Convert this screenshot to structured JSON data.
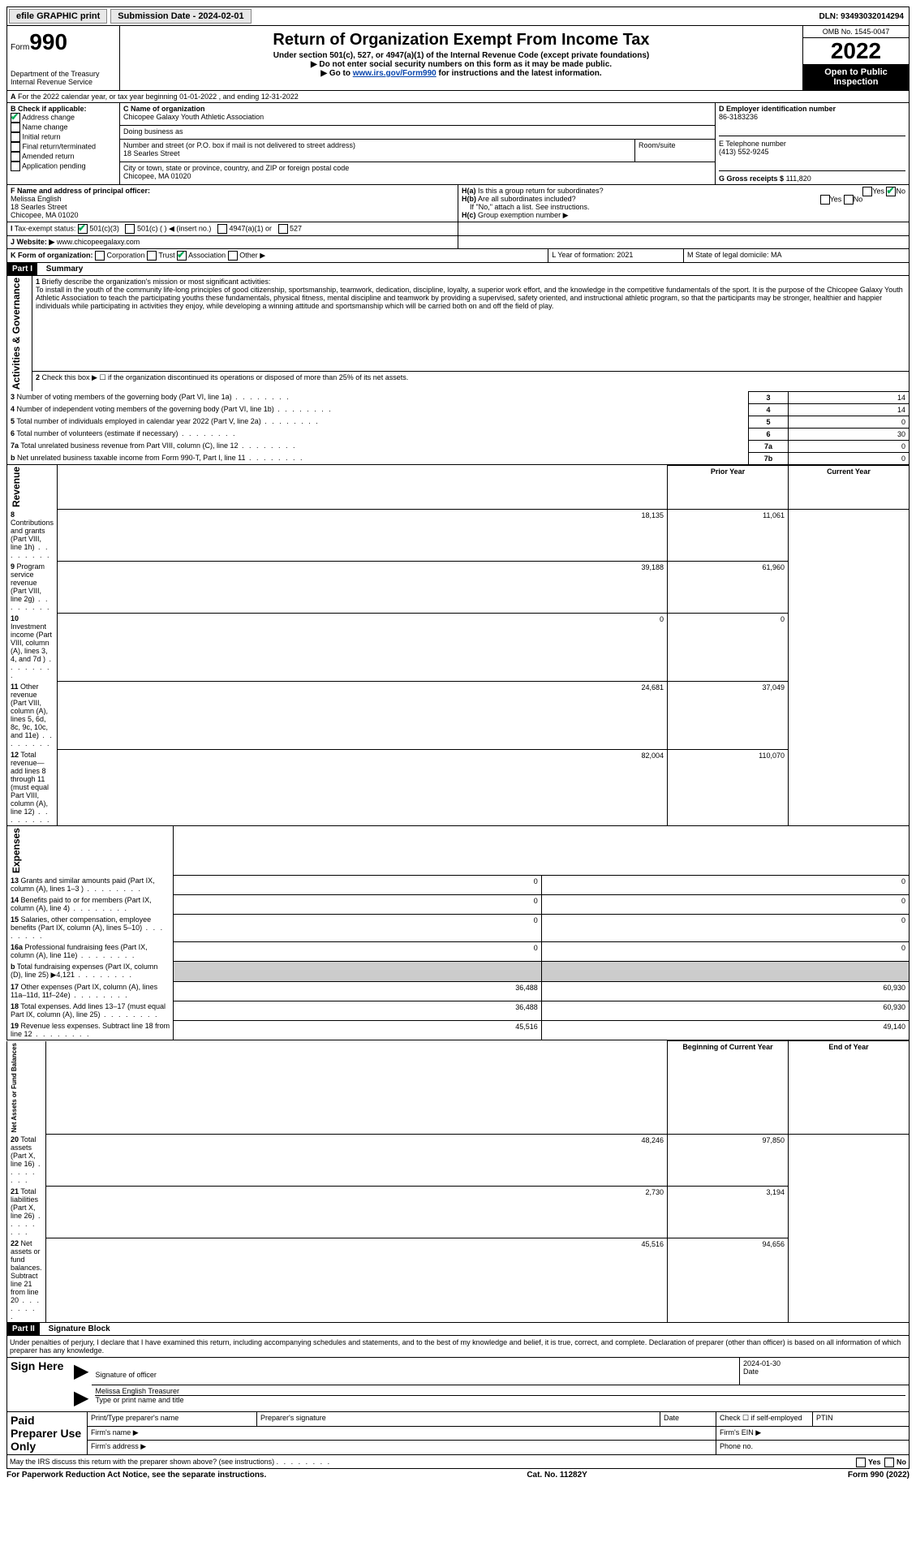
{
  "topbar": {
    "efile": "efile GRAPHIC print",
    "submission_label": "Submission Date - 2024-02-01",
    "dln": "DLN: 93493032014294"
  },
  "header": {
    "form_label": "Form",
    "form_no": "990",
    "dept": "Department of the Treasury",
    "irs": "Internal Revenue Service",
    "title": "Return of Organization Exempt From Income Tax",
    "sub1": "Under section 501(c), 527, or 4947(a)(1) of the Internal Revenue Code (except private foundations)",
    "sub2": "▶ Do not enter social security numbers on this form as it may be made public.",
    "sub3_pre": "▶ Go to ",
    "sub3_link": "www.irs.gov/Form990",
    "sub3_post": " for instructions and the latest information.",
    "omb": "OMB No. 1545-0047",
    "year": "2022",
    "open": "Open to Public Inspection"
  },
  "A": {
    "text": "For the 2022 calendar year, or tax year beginning 01-01-2022   , and ending 12-31-2022"
  },
  "B": {
    "label": "B Check if applicable:",
    "items": [
      "Address change",
      "Name change",
      "Initial return",
      "Final return/terminated",
      "Amended return",
      "Application pending"
    ],
    "checked": [
      true,
      false,
      false,
      false,
      false,
      false
    ]
  },
  "C": {
    "name_label": "C Name of organization",
    "name": "Chicopee Galaxy Youth Athletic Association",
    "dba_label": "Doing business as",
    "addr_label": "Number and street (or P.O. box if mail is not delivered to street address)",
    "addr": "18 Searles Street",
    "room_label": "Room/suite",
    "city_label": "City or town, state or province, country, and ZIP or foreign postal code",
    "city": "Chicopee, MA  01020"
  },
  "D": {
    "label": "D Employer identification number",
    "val": "86-3183236"
  },
  "E": {
    "label": "E Telephone number",
    "val": "(413) 552-9245"
  },
  "G": {
    "label": "G Gross receipts $",
    "val": "111,820"
  },
  "F": {
    "label": "F  Name and address of principal officer:",
    "name": "Melissa English",
    "addr1": "18 Searles Street",
    "addr2": "Chicopee, MA  01020"
  },
  "H": {
    "a": "Is this a group return for subordinates?",
    "b": "Are all subordinates included?",
    "note": "If \"No,\" attach a list. See instructions.",
    "c": "Group exemption number ▶",
    "yes": "Yes",
    "no": "No"
  },
  "I": {
    "label": "Tax-exempt status:",
    "opts": [
      "501(c)(3)",
      "501(c) (  ) ◀ (insert no.)",
      "4947(a)(1) or",
      "527"
    ]
  },
  "J": {
    "label": "Website: ▶",
    "val": "www.chicopeegalaxy.com"
  },
  "K": {
    "label": "K Form of organization:",
    "opts": [
      "Corporation",
      "Trust",
      "Association",
      "Other ▶"
    ],
    "checked": 2
  },
  "L": {
    "label": "L Year of formation: 2021"
  },
  "M": {
    "label": "M State of legal domicile: MA"
  },
  "part1": {
    "title": "Part I",
    "subtitle": "Summary",
    "mission_label": "Briefly describe the organization's mission or most significant activities:",
    "mission": "To install in the youth of the community life-long principles of good citizenship, sportsmanship, teamwork, dedication, discipline, loyalty, a superior work effort, and the knowledge in the competitive fundamentals of the sport. It is the purpose of the Chicopee Galaxy Youth Athletic Association to teach the participating youths these fundamentals, physical fitness, mental discipline and teamwork by providing a supervised, safety oriented, and instructional athletic program, so that the participants may be stronger, healthier and happier individuals while participating in activities they enjoy, while developing a winning attitude and sportsmanship which will be carried both on and off the field of play.",
    "line2": "Check this box ▶ ☐ if the organization discontinued its operations or disposed of more than 25% of its net assets.",
    "gov_rows": [
      {
        "n": "3",
        "t": "Number of voting members of the governing body (Part VI, line 1a)",
        "box": "3",
        "v": "14"
      },
      {
        "n": "4",
        "t": "Number of independent voting members of the governing body (Part VI, line 1b)",
        "box": "4",
        "v": "14"
      },
      {
        "n": "5",
        "t": "Total number of individuals employed in calendar year 2022 (Part V, line 2a)",
        "box": "5",
        "v": "0"
      },
      {
        "n": "6",
        "t": "Total number of volunteers (estimate if necessary)",
        "box": "6",
        "v": "30"
      },
      {
        "n": "7a",
        "t": "Total unrelated business revenue from Part VIII, column (C), line 12",
        "box": "7a",
        "v": "0"
      },
      {
        "n": "b",
        "t": "Net unrelated business taxable income from Form 990-T, Part I, line 11",
        "box": "7b",
        "v": "0"
      }
    ],
    "col_hdr": {
      "prior": "Prior Year",
      "curr": "Current Year"
    },
    "rev_rows": [
      {
        "n": "8",
        "t": "Contributions and grants (Part VIII, line 1h)",
        "p": "18,135",
        "c": "11,061"
      },
      {
        "n": "9",
        "t": "Program service revenue (Part VIII, line 2g)",
        "p": "39,188",
        "c": "61,960"
      },
      {
        "n": "10",
        "t": "Investment income (Part VIII, column (A), lines 3, 4, and 7d )",
        "p": "0",
        "c": "0"
      },
      {
        "n": "11",
        "t": "Other revenue (Part VIII, column (A), lines 5, 6d, 8c, 9c, 10c, and 11e)",
        "p": "24,681",
        "c": "37,049"
      },
      {
        "n": "12",
        "t": "Total revenue—add lines 8 through 11 (must equal Part VIII, column (A), line 12)",
        "p": "82,004",
        "c": "110,070"
      }
    ],
    "exp_rows": [
      {
        "n": "13",
        "t": "Grants and similar amounts paid (Part IX, column (A), lines 1–3 )",
        "p": "0",
        "c": "0"
      },
      {
        "n": "14",
        "t": "Benefits paid to or for members (Part IX, column (A), line 4)",
        "p": "0",
        "c": "0"
      },
      {
        "n": "15",
        "t": "Salaries, other compensation, employee benefits (Part IX, column (A), lines 5–10)",
        "p": "0",
        "c": "0"
      },
      {
        "n": "16a",
        "t": "Professional fundraising fees (Part IX, column (A), line 11e)",
        "p": "0",
        "c": "0"
      },
      {
        "n": "b",
        "t": "Total fundraising expenses (Part IX, column (D), line 25) ▶4,121",
        "p": "",
        "c": "",
        "grey": true
      },
      {
        "n": "17",
        "t": "Other expenses (Part IX, column (A), lines 11a–11d, 11f–24e)",
        "p": "36,488",
        "c": "60,930"
      },
      {
        "n": "18",
        "t": "Total expenses. Add lines 13–17 (must equal Part IX, column (A), line 25)",
        "p": "36,488",
        "c": "60,930"
      },
      {
        "n": "19",
        "t": "Revenue less expenses. Subtract line 18 from line 12",
        "p": "45,516",
        "c": "49,140"
      }
    ],
    "net_hdr": {
      "b": "Beginning of Current Year",
      "e": "End of Year"
    },
    "net_rows": [
      {
        "n": "20",
        "t": "Total assets (Part X, line 16)",
        "p": "48,246",
        "c": "97,850"
      },
      {
        "n": "21",
        "t": "Total liabilities (Part X, line 26)",
        "p": "2,730",
        "c": "3,194"
      },
      {
        "n": "22",
        "t": "Net assets or fund balances. Subtract line 21 from line 20",
        "p": "45,516",
        "c": "94,656"
      }
    ],
    "side": {
      "gov": "Activities & Governance",
      "rev": "Revenue",
      "exp": "Expenses",
      "net": "Net Assets or Fund Balances"
    }
  },
  "part2": {
    "title": "Part II",
    "subtitle": "Signature Block",
    "perjury": "Under penalties of perjury, I declare that I have examined this return, including accompanying schedules and statements, and to the best of my knowledge and belief, it is true, correct, and complete. Declaration of preparer (other than officer) is based on all information of which preparer has any knowledge.",
    "sign_here": "Sign Here",
    "sig_officer": "Signature of officer",
    "date": "Date",
    "date_val": "2024-01-30",
    "name_title": "Melissa English  Treasurer",
    "type_print": "Type or print name and title",
    "paid": "Paid Preparer Use Only",
    "prep_name": "Print/Type preparer's name",
    "prep_sig": "Preparer's signature",
    "prep_date": "Date",
    "self_emp": "Check ☐ if self-employed",
    "ptin": "PTIN",
    "firm_name": "Firm's name  ▶",
    "firm_ein": "Firm's EIN ▶",
    "firm_addr": "Firm's address ▶",
    "phone": "Phone no.",
    "discuss": "May the IRS discuss this return with the preparer shown above? (see instructions)"
  },
  "footer": {
    "left": "For Paperwork Reduction Act Notice, see the separate instructions.",
    "mid": "Cat. No. 11282Y",
    "right": "Form 990 (2022)"
  }
}
